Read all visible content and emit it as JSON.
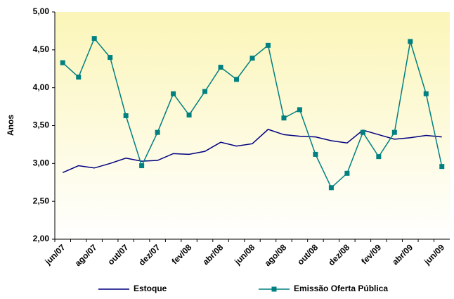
{
  "chart_data": {
    "type": "line",
    "y_label": "Anos",
    "categories": [
      "jun/07",
      null,
      "ago/07",
      null,
      "out/07",
      null,
      "dez/07",
      null,
      "fev/08",
      null,
      "abr/08",
      null,
      "jun/08",
      null,
      "ago/08",
      null,
      "out/08",
      null,
      "dez/08",
      null,
      "fev/09",
      null,
      "abr/09",
      null,
      "jun/09"
    ],
    "series": [
      {
        "name": "Estoque",
        "color": "#000080",
        "marker": false,
        "values": [
          2.88,
          2.97,
          2.94,
          3.0,
          3.07,
          3.03,
          3.04,
          3.13,
          3.12,
          3.16,
          3.28,
          3.23,
          3.26,
          3.45,
          3.38,
          3.36,
          3.35,
          3.3,
          3.27,
          3.44,
          3.38,
          3.32,
          3.34,
          3.37,
          3.35
        ]
      },
      {
        "name": "Emissão Oferta Pública",
        "color": "#008080",
        "marker": true,
        "values": [
          4.33,
          4.14,
          4.65,
          4.4,
          3.63,
          2.97,
          3.41,
          3.92,
          3.64,
          3.95,
          4.27,
          4.11,
          4.39,
          4.56,
          3.6,
          3.71,
          3.12,
          2.68,
          2.87,
          3.41,
          3.09,
          3.41,
          4.61,
          3.92,
          2.96
        ]
      }
    ],
    "ylim": [
      2,
      5
    ],
    "yticks": [
      {
        "value": 2,
        "label": "2,00"
      },
      {
        "value": 2.5,
        "label": "2,50"
      },
      {
        "value": 3,
        "label": "3,00"
      },
      {
        "value": 3.5,
        "label": "3,50"
      },
      {
        "value": 4,
        "label": "4,00"
      },
      {
        "value": 4.5,
        "label": "4,50"
      },
      {
        "value": 5,
        "label": "5,00"
      }
    ],
    "grid": false
  }
}
